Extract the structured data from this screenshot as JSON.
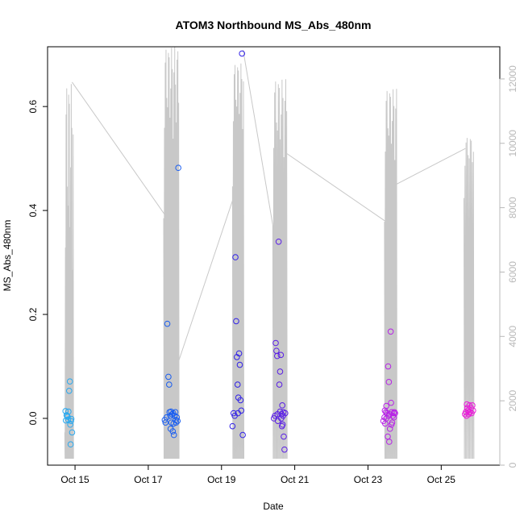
{
  "chart_data": {
    "type": "scatter",
    "title": "ATOM3 Northbound MS_Abs_480nm",
    "xlabel": "Date",
    "ylabel": "MS_Abs_480nm",
    "x_unit": "day of October",
    "xlim": [
      14.25,
      26.6
    ],
    "ylim": [
      -0.09,
      0.715
    ],
    "x_ticks": [
      {
        "value": 15,
        "label": "Oct 15"
      },
      {
        "value": 17,
        "label": "Oct 17"
      },
      {
        "value": 19,
        "label": "Oct 19"
      },
      {
        "value": 21,
        "label": "Oct 21"
      },
      {
        "value": 23,
        "label": "Oct 23"
      },
      {
        "value": 25,
        "label": "Oct 25"
      }
    ],
    "y_ticks": [
      0.0,
      0.2,
      0.4,
      0.6
    ],
    "y_tick_labels": [
      "0.0",
      "0.2",
      "0.4",
      "0.6"
    ],
    "y2lim": [
      0,
      13000
    ],
    "y2_ticks": [
      0,
      2000,
      4000,
      6000,
      8000,
      10000,
      12000
    ],
    "y2_tick_labels": [
      "0",
      "2000",
      "4000",
      "6000",
      "8000",
      "10000",
      "12000"
    ],
    "grid": false,
    "legend": "none",
    "marker": "open circle",
    "colors": {
      "axis": "#000000",
      "secondary_axis": "#b8b8b8",
      "secondary_line": "#c8c8c8"
    },
    "series": [
      {
        "color": "#29a9f0",
        "points": [
          [
            14.74,
            0.014
          ],
          [
            14.75,
            -0.004
          ],
          [
            14.77,
            0.006
          ],
          [
            14.8,
            0.003
          ],
          [
            14.82,
            0.013
          ],
          [
            14.78,
            0.005
          ],
          [
            14.81,
            -0.002
          ],
          [
            14.84,
            0.053
          ],
          [
            14.86,
            0.071
          ],
          [
            14.87,
            -0.012
          ],
          [
            14.89,
            -0.005
          ],
          [
            14.9,
            -0.001
          ],
          [
            14.92,
            -0.027
          ],
          [
            14.88,
            -0.05
          ]
        ]
      },
      {
        "color": "#1a5ef0",
        "points": [
          [
            17.45,
            -0.003
          ],
          [
            17.47,
            -0.008
          ],
          [
            17.5,
            0.002
          ],
          [
            17.52,
            0.182
          ],
          [
            17.55,
            0.08
          ],
          [
            17.57,
            0.065
          ],
          [
            17.58,
            0.012
          ],
          [
            17.6,
            0.005
          ],
          [
            17.61,
            -0.02
          ],
          [
            17.63,
            -0.008
          ],
          [
            17.65,
            0.008
          ],
          [
            17.67,
            -0.025
          ],
          [
            17.68,
            0.01
          ],
          [
            17.7,
            -0.032
          ],
          [
            17.72,
            0.005
          ],
          [
            17.74,
            0.012
          ],
          [
            17.76,
            -0.008
          ],
          [
            17.78,
            0.002
          ],
          [
            17.8,
            -0.005
          ],
          [
            17.82,
            0.482
          ],
          [
            17.62,
            0.013
          ],
          [
            17.69,
            -0.01
          ],
          [
            17.75,
            -0.003
          ]
        ]
      },
      {
        "color": "#3222e8",
        "points": [
          [
            19.3,
            -0.015
          ],
          [
            19.33,
            0.01
          ],
          [
            19.36,
            0.005
          ],
          [
            19.38,
            0.31
          ],
          [
            19.4,
            0.187
          ],
          [
            19.42,
            0.118
          ],
          [
            19.44,
            0.065
          ],
          [
            19.46,
            0.04
          ],
          [
            19.48,
            0.125
          ],
          [
            19.5,
            0.103
          ],
          [
            19.52,
            0.035
          ],
          [
            19.54,
            0.015
          ],
          [
            19.56,
            0.702
          ],
          [
            19.58,
            -0.032
          ],
          [
            19.45,
            0.01
          ]
        ]
      },
      {
        "color": "#5a1ee6",
        "points": [
          [
            20.43,
            0.0
          ],
          [
            20.46,
            0.005
          ],
          [
            20.48,
            0.145
          ],
          [
            20.5,
            0.13
          ],
          [
            20.52,
            0.12
          ],
          [
            20.54,
            -0.005
          ],
          [
            20.56,
            0.34
          ],
          [
            20.58,
            0.065
          ],
          [
            20.6,
            0.09
          ],
          [
            20.62,
            0.122
          ],
          [
            20.64,
            0.008
          ],
          [
            20.66,
            0.025
          ],
          [
            20.67,
            -0.012
          ],
          [
            20.69,
            0.012
          ],
          [
            20.7,
            -0.035
          ],
          [
            20.72,
            -0.06
          ],
          [
            20.74,
            0.01
          ],
          [
            20.6,
            0.013
          ],
          [
            20.65,
            -0.015
          ],
          [
            20.53,
            0.008
          ],
          [
            20.63,
            0.0
          ],
          [
            20.68,
            0.005
          ]
        ]
      },
      {
        "color": "#b822e8",
        "points": [
          [
            23.42,
            -0.005
          ],
          [
            23.45,
            0.002
          ],
          [
            23.47,
            -0.01
          ],
          [
            23.49,
            0.012
          ],
          [
            23.5,
            0.024
          ],
          [
            23.52,
            0.01
          ],
          [
            23.54,
            -0.035
          ],
          [
            23.55,
            0.1
          ],
          [
            23.57,
            0.07
          ],
          [
            23.58,
            -0.045
          ],
          [
            23.6,
            -0.02
          ],
          [
            23.62,
            0.167
          ],
          [
            23.63,
            0.03
          ],
          [
            23.65,
            0.012
          ],
          [
            23.66,
            -0.008
          ],
          [
            23.68,
            0.005
          ],
          [
            23.7,
            0.01
          ],
          [
            23.72,
            0.012
          ],
          [
            23.74,
            0.01
          ],
          [
            23.5,
            0.0
          ],
          [
            23.59,
            0.008
          ],
          [
            23.64,
            -0.012
          ],
          [
            23.71,
            0.002
          ],
          [
            23.46,
            0.015
          ],
          [
            23.56,
            0.005
          ]
        ]
      },
      {
        "color": "#e81ed8",
        "points": [
          [
            25.65,
            0.008
          ],
          [
            25.67,
            0.012
          ],
          [
            25.69,
            0.005
          ],
          [
            25.71,
            0.02
          ],
          [
            25.73,
            0.015
          ],
          [
            25.75,
            0.008
          ],
          [
            25.77,
            0.025
          ],
          [
            25.79,
            0.012
          ],
          [
            25.81,
            0.02
          ],
          [
            25.83,
            0.01
          ],
          [
            25.85,
            0.025
          ],
          [
            25.87,
            0.015
          ],
          [
            25.7,
            0.027
          ],
          [
            25.76,
            0.012
          ]
        ]
      }
    ],
    "secondary_series": {
      "style": "line",
      "connectors": [
        [
          14.92,
          11900
        ],
        [
          17.52,
          7670
        ],
        [
          17.82,
          3200
        ],
        [
          19.43,
          8660
        ],
        [
          19.59,
          12900
        ],
        [
          20.4,
          7460
        ],
        [
          20.76,
          9700
        ],
        [
          23.5,
          7560
        ],
        [
          23.78,
          8730
        ],
        [
          25.66,
          9840
        ]
      ],
      "bursts": [
        {
          "x0": 14.72,
          "x1": 14.95,
          "y0": 1020,
          "y1": 11900,
          "low": 200,
          "n": 14
        },
        {
          "x0": 17.42,
          "x1": 17.83,
          "y0": 7670,
          "y1": 13000,
          "low": 200,
          "n": 20
        },
        {
          "x0": 19.3,
          "x1": 19.6,
          "y0": 8660,
          "y1": 12500,
          "low": 200,
          "n": 14
        },
        {
          "x0": 20.4,
          "x1": 20.78,
          "y0": 7460,
          "y1": 12000,
          "low": 200,
          "n": 16
        },
        {
          "x0": 23.45,
          "x1": 23.78,
          "y0": 7560,
          "y1": 11700,
          "low": 200,
          "n": 15
        },
        {
          "x0": 25.62,
          "x1": 25.88,
          "y0": 8300,
          "y1": 10200,
          "low": 200,
          "n": 10
        }
      ]
    }
  }
}
